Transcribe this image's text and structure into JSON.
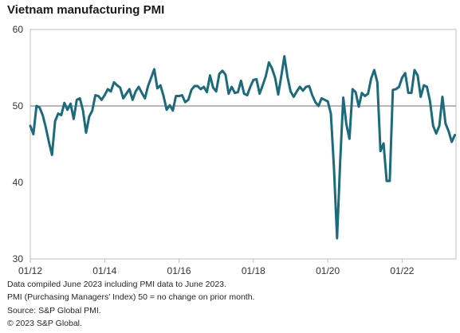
{
  "title": "Vietnam manufacturing PMI",
  "notes": [
    "Data compiled June 2023 including PMI data to June 2023.",
    "PMI (Purchasing Managers' Index) 50 = no change on prior month.",
    "Source: S&P Global PMI.",
    "© 2023 S&P Global."
  ],
  "colors": {
    "line": "#1c6b7c",
    "reference_line": "#8c8c8c",
    "frame": "#bfbfbf"
  },
  "chart_data": {
    "type": "line",
    "title": "Vietnam manufacturing PMI",
    "xlabel": "",
    "ylabel": "",
    "ylim": [
      30,
      60
    ],
    "yticks": [
      60,
      50,
      40,
      30
    ],
    "xticks": [
      "01/12",
      "01/14",
      "01/16",
      "01/18",
      "01/20",
      "01/22"
    ],
    "reference_line": 50,
    "grid": false,
    "legend": "none",
    "x": [
      "01/12",
      "02/12",
      "03/12",
      "04/12",
      "05/12",
      "06/12",
      "07/12",
      "08/12",
      "09/12",
      "10/12",
      "11/12",
      "12/12",
      "01/13",
      "02/13",
      "03/13",
      "04/13",
      "05/13",
      "06/13",
      "07/13",
      "08/13",
      "09/13",
      "10/13",
      "11/13",
      "12/13",
      "01/14",
      "02/14",
      "03/14",
      "04/14",
      "05/14",
      "06/14",
      "07/14",
      "08/14",
      "09/14",
      "10/14",
      "11/14",
      "12/14",
      "01/15",
      "02/15",
      "03/15",
      "04/15",
      "05/15",
      "06/15",
      "07/15",
      "08/15",
      "09/15",
      "10/15",
      "11/15",
      "12/15",
      "01/16",
      "02/16",
      "03/16",
      "04/16",
      "05/16",
      "06/16",
      "07/16",
      "08/16",
      "09/16",
      "10/16",
      "11/16",
      "12/16",
      "01/17",
      "02/17",
      "03/17",
      "04/17",
      "05/17",
      "06/17",
      "07/17",
      "08/17",
      "09/17",
      "10/17",
      "11/17",
      "12/17",
      "01/18",
      "02/18",
      "03/18",
      "04/18",
      "05/18",
      "06/18",
      "07/18",
      "08/18",
      "09/18",
      "10/18",
      "11/18",
      "12/18",
      "01/19",
      "02/19",
      "03/19",
      "04/19",
      "05/19",
      "06/19",
      "07/19",
      "08/19",
      "09/19",
      "10/19",
      "11/19",
      "12/19",
      "01/20",
      "02/20",
      "03/20",
      "04/20",
      "05/20",
      "06/20",
      "07/20",
      "08/20",
      "09/20",
      "10/20",
      "11/20",
      "12/20",
      "01/21",
      "02/21",
      "03/21",
      "04/21",
      "05/21",
      "06/21",
      "07/21",
      "08/21",
      "09/21",
      "10/21",
      "11/21",
      "12/21",
      "01/22",
      "02/22",
      "03/22",
      "04/22",
      "05/22",
      "06/22",
      "07/22",
      "08/22",
      "09/22",
      "10/22",
      "11/22",
      "12/22",
      "01/23",
      "02/23",
      "03/23",
      "04/23",
      "05/23",
      "06/23"
    ],
    "series": [
      {
        "values": [
          47.4,
          46.3,
          50.0,
          49.8,
          48.8,
          47.2,
          45.3,
          43.6,
          48.0,
          49.0,
          48.8,
          50.4,
          49.5,
          50.3,
          48.3,
          50.8,
          51.0,
          49.4,
          46.5,
          48.6,
          49.4,
          51.4,
          51.3,
          50.8,
          51.4,
          52.2,
          51.9,
          53.1,
          52.7,
          52.4,
          51.0,
          51.6,
          52.2,
          50.8,
          51.9,
          52.5,
          51.7,
          51.0,
          52.6,
          53.7,
          54.8,
          52.3,
          52.7,
          51.3,
          49.5,
          50.1,
          49.4,
          51.3,
          51.3,
          51.4,
          50.5,
          50.8,
          52.1,
          52.6,
          52.6,
          52.2,
          52.5,
          51.8,
          54.0,
          52.4,
          51.9,
          54.2,
          54.6,
          54.1,
          51.6,
          52.5,
          51.7,
          51.8,
          53.3,
          51.6,
          51.4,
          52.5,
          53.4,
          53.5,
          51.6,
          52.7,
          53.9,
          55.7,
          54.9,
          53.7,
          51.5,
          53.9,
          56.5,
          53.8,
          51.9,
          51.2,
          51.9,
          52.5,
          52.0,
          52.5,
          52.6,
          51.4,
          50.5,
          50.0,
          51.0,
          50.8,
          50.6,
          49.0,
          41.9,
          32.7,
          42.7,
          51.1,
          47.6,
          45.7,
          52.2,
          51.8,
          49.9,
          51.7,
          51.3,
          51.6,
          53.6,
          54.7,
          53.1,
          44.1,
          45.1,
          40.2,
          40.2,
          52.1,
          52.2,
          52.5,
          53.7,
          54.3,
          51.7,
          51.7,
          54.7,
          54.0,
          51.2,
          52.7,
          52.5,
          50.6,
          47.4,
          46.4,
          47.4,
          51.2,
          47.7,
          46.7,
          45.3,
          46.2
        ]
      }
    ]
  }
}
